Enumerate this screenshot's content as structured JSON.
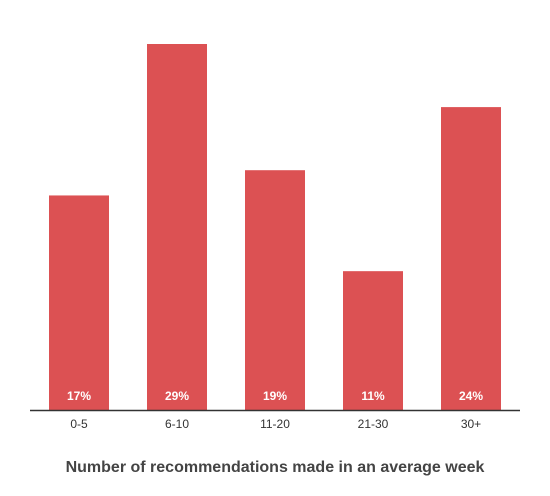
{
  "chart_data": {
    "type": "bar",
    "categories": [
      "0-5",
      "6-10",
      "11-20",
      "21-30",
      "30+"
    ],
    "values": [
      17,
      29,
      19,
      11,
      24
    ],
    "value_labels": [
      "17%",
      "29%",
      "19%",
      "11%",
      "24%"
    ],
    "value_unit": "%",
    "xlabel": "Number of recommendations made in an average week",
    "ylabel": "",
    "ylim": [
      0,
      29
    ],
    "grid": false,
    "legend": "none",
    "colors": {
      "bar": "#dc5153",
      "axis": "#333333",
      "label": "#ffffff",
      "tick": "#333333",
      "title": "#444444"
    }
  }
}
